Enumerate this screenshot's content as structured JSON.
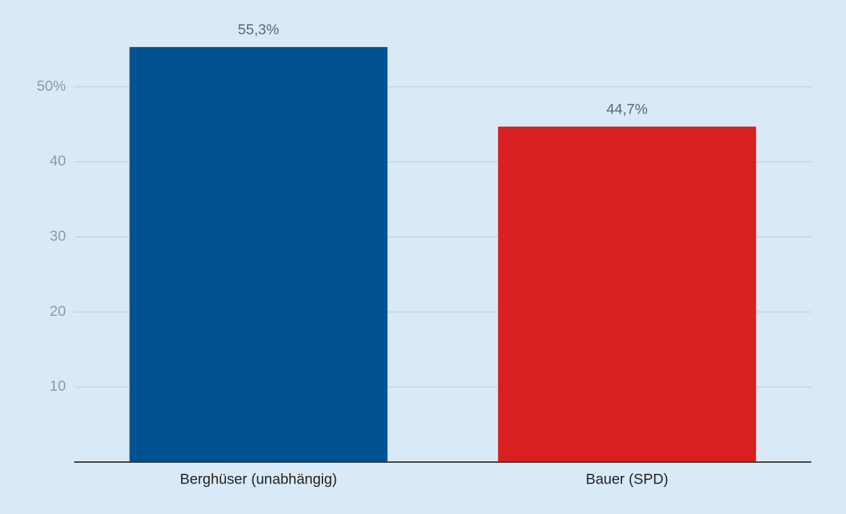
{
  "chart_data": {
    "type": "bar",
    "categories": [
      "Berghüser (unabhängig)",
      "Bauer (SPD)"
    ],
    "values": [
      55.3,
      44.7
    ],
    "value_labels": [
      "55,3%",
      "44,7%"
    ],
    "colors": [
      "#005293",
      "#d82020"
    ],
    "ylim": [
      0,
      60
    ],
    "yticks": [
      10,
      20,
      30,
      40,
      {
        "value": 50,
        "label": "50%"
      }
    ],
    "grid": true
  }
}
